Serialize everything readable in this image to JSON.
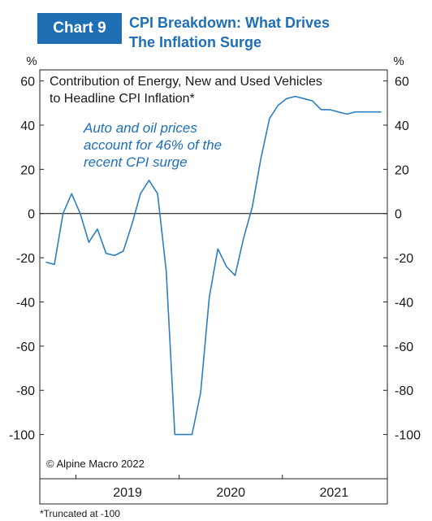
{
  "header": {
    "badge": "Chart 9",
    "title_line1": "CPI Breakdown: What Drives",
    "title_line2": "The Inflation Surge"
  },
  "colors": {
    "brand_blue": "#1f6fb5",
    "line": "#2d7fbd",
    "frame": "#222222"
  },
  "chart_data": {
    "type": "line",
    "title": "Contribution of Energy, New and Used Vehicles to Headline CPI Inflation*",
    "title_lines": [
      "Contribution of Energy, New and Used Vehicles",
      "to Headline CPI Inflation*"
    ],
    "annotation_lines": [
      "Auto and oil prices",
      "account for 46% of the",
      "recent CPI surge"
    ],
    "ylabel_left": "%",
    "ylabel_right": "%",
    "xlabel": "",
    "ylim": [
      -120,
      65
    ],
    "y_ticks": [
      60,
      40,
      20,
      0,
      -20,
      -40,
      -60,
      -80,
      -100
    ],
    "y_tick_labels": [
      "60",
      "40",
      "20",
      "0",
      "-20",
      "-40",
      "-60",
      "-80",
      "-100"
    ],
    "x_range": [
      "2018-09",
      "2021-12"
    ],
    "x_tick_labels": [
      "2019",
      "2020",
      "2021"
    ],
    "zero_line": true,
    "grid": false,
    "source": "© Alpine Macro 2022",
    "footnote": "*Truncated at -100",
    "series": [
      {
        "x": [
          "2018-09",
          "2018-10",
          "2018-11",
          "2018-12",
          "2019-01",
          "2019-02",
          "2019-03",
          "2019-04",
          "2019-05",
          "2019-06",
          "2019-07",
          "2019-08",
          "2019-09",
          "2019-10",
          "2019-11",
          "2019-12",
          "2020-01",
          "2020-02",
          "2020-03",
          "2020-04",
          "2020-05",
          "2020-06",
          "2020-07",
          "2020-08",
          "2020-09",
          "2020-10",
          "2020-11",
          "2020-12",
          "2021-01",
          "2021-02",
          "2021-03",
          "2021-04",
          "2021-05",
          "2021-06",
          "2021-07",
          "2021-08",
          "2021-09",
          "2021-10",
          "2021-11",
          "2021-12"
        ],
        "values": [
          -22,
          -23,
          0,
          9,
          0,
          -13,
          -7,
          -18,
          -19,
          -17,
          -5,
          9,
          15,
          9,
          -26,
          -100,
          -100,
          -100,
          -81,
          -38,
          -16,
          -24,
          -28,
          -11,
          3,
          25,
          43,
          49,
          52,
          53,
          52,
          51,
          47,
          47,
          46,
          45,
          46,
          46,
          46,
          46
        ]
      }
    ]
  }
}
